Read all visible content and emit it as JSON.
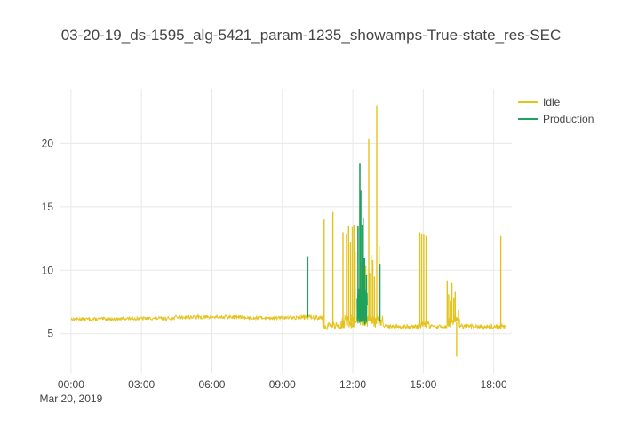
{
  "chart_data": {
    "type": "line",
    "title": "03-20-19_ds-1595_alg-5421_param-1235_showamps-True-state_res-SEC",
    "x_axis": {
      "date_label": "Mar 20, 2019",
      "tick_hours": [
        0,
        3,
        6,
        9,
        12,
        15,
        18
      ],
      "tick_labels": [
        "00:00",
        "03:00",
        "06:00",
        "09:00",
        "12:00",
        "15:00",
        "18:00"
      ],
      "range_hours": [
        -0.45,
        18.77
      ]
    },
    "y_axis": {
      "ticks": [
        5,
        10,
        15,
        20
      ],
      "range": [
        1.9,
        24.3
      ]
    },
    "legend_position": "top-right",
    "grid": true,
    "series": [
      {
        "name": "Idle",
        "color": "#e5c31d",
        "baseline_segments": [
          {
            "start": 0.0,
            "end": 2.2,
            "value": 6.15,
            "noise": 0.13
          },
          {
            "start": 2.2,
            "end": 4.4,
            "value": 6.2,
            "noise": 0.13
          },
          {
            "start": 4.4,
            "end": 7.4,
            "value": 6.3,
            "noise": 0.15
          },
          {
            "start": 7.4,
            "end": 9.7,
            "value": 6.25,
            "noise": 0.13
          },
          {
            "start": 9.7,
            "end": 10.72,
            "value": 6.3,
            "noise": 0.2
          },
          {
            "start": 10.72,
            "end": 11.5,
            "value": 5.6,
            "noise": 0.3
          },
          {
            "start": 11.5,
            "end": 13.3,
            "value": 5.95,
            "noise": 0.55
          },
          {
            "start": 13.3,
            "end": 14.8,
            "value": 5.55,
            "noise": 0.15
          },
          {
            "start": 14.8,
            "end": 15.3,
            "value": 5.7,
            "noise": 0.3
          },
          {
            "start": 15.3,
            "end": 16.0,
            "value": 5.55,
            "noise": 0.15
          },
          {
            "start": 16.0,
            "end": 16.55,
            "value": 5.9,
            "noise": 0.5
          },
          {
            "start": 16.55,
            "end": 18.55,
            "value": 5.55,
            "noise": 0.18
          }
        ],
        "spikes": [
          [
            10.78,
            14.0
          ],
          [
            11.15,
            14.6
          ],
          [
            11.58,
            13.0
          ],
          [
            11.73,
            12.9
          ],
          [
            11.82,
            13.5
          ],
          [
            11.9,
            12.2
          ],
          [
            11.98,
            13.4
          ],
          [
            12.05,
            13.6
          ],
          [
            12.1,
            11.4
          ],
          [
            12.35,
            10.6
          ],
          [
            12.55,
            10.4
          ],
          [
            12.68,
            20.4
          ],
          [
            12.72,
            9.8
          ],
          [
            12.78,
            11.2
          ],
          [
            12.85,
            10.8
          ],
          [
            12.92,
            9.5
          ],
          [
            13.02,
            23.0
          ],
          [
            13.12,
            11.9
          ],
          [
            14.85,
            13.0
          ],
          [
            14.93,
            12.9
          ],
          [
            15.02,
            12.8
          ],
          [
            15.12,
            12.7
          ],
          [
            16.02,
            9.2
          ],
          [
            16.08,
            8.1
          ],
          [
            16.15,
            7.6
          ],
          [
            16.22,
            9.0
          ],
          [
            16.3,
            7.8
          ],
          [
            16.36,
            8.3
          ],
          [
            16.42,
            3.2
          ],
          [
            16.5,
            6.9
          ],
          [
            18.3,
            12.7
          ]
        ]
      },
      {
        "name": "Production",
        "color": "#1fa25c",
        "band_segments": [
          {
            "start": 12.18,
            "end": 12.62,
            "center": 7.2,
            "noise": 1.5
          }
        ],
        "spikes": [
          [
            10.08,
            11.1
          ],
          [
            12.22,
            13.5
          ],
          [
            12.3,
            18.4
          ],
          [
            12.34,
            16.3
          ],
          [
            12.4,
            13.6
          ],
          [
            12.44,
            14.1
          ],
          [
            12.5,
            11.0
          ],
          [
            12.58,
            9.6
          ],
          [
            13.15,
            10.5
          ]
        ]
      }
    ]
  }
}
